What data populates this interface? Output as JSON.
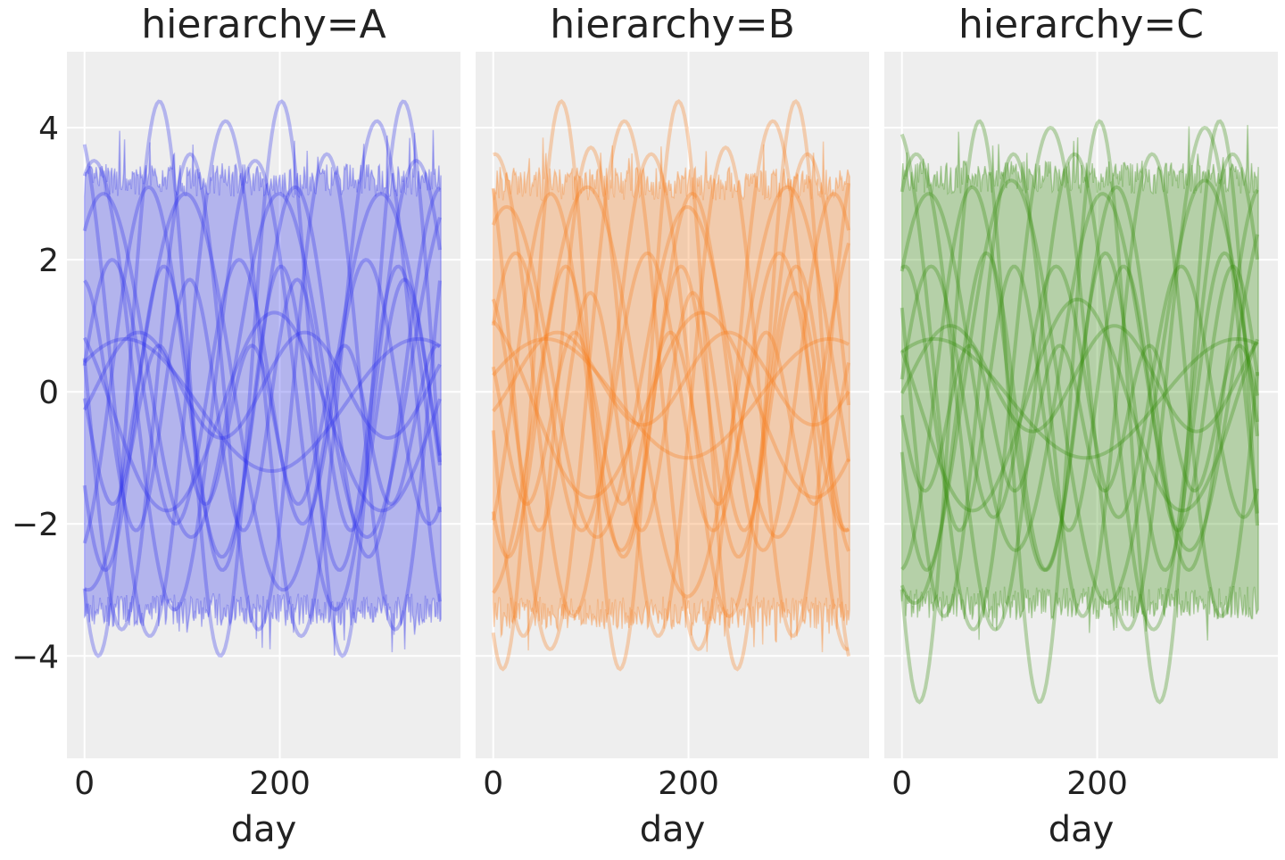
{
  "chart_data": {
    "type": "line",
    "xlabel": "day",
    "ylabel": "",
    "xlim": [
      -18,
      385
    ],
    "ylim": [
      -5.55,
      5.15
    ],
    "xticks": [
      0,
      200
    ],
    "xtick_labels": [
      "0",
      "200"
    ],
    "yticks": [
      -4,
      -2,
      0,
      2,
      4
    ],
    "ytick_labels": [
      "−4",
      "−2",
      "0",
      "2",
      "4"
    ],
    "grid": true,
    "panels": [
      {
        "title": "hierarchy=A",
        "color": "#2a2eec",
        "band": {
          "upper_mean": 3.2,
          "lower_mean": -3.3,
          "noise": 0.25,
          "x_range": [
            0,
            365
          ]
        },
        "curves": [
          {
            "amp": 2.0,
            "period": 130,
            "phase": 0.2,
            "offset": 0.0
          },
          {
            "amp": 3.4,
            "period": 165,
            "phase": 1.2,
            "offset": 0.1
          },
          {
            "amp": 1.5,
            "period": 220,
            "phase": 2.3,
            "offset": -0.3
          },
          {
            "amp": 4.2,
            "period": 125,
            "phase": 4.0,
            "offset": 0.2
          },
          {
            "amp": 2.8,
            "period": 150,
            "phase": 5.1,
            "offset": 0.3
          },
          {
            "amp": 1.0,
            "period": 300,
            "phase": 0.7,
            "offset": -0.2
          },
          {
            "amp": 3.6,
            "period": 140,
            "phase": 3.0,
            "offset": 0.0
          },
          {
            "amp": 1.9,
            "period": 110,
            "phase": 1.7,
            "offset": -0.2
          },
          {
            "amp": 2.6,
            "period": 180,
            "phase": 0.9,
            "offset": 0.4
          },
          {
            "amp": 1.2,
            "period": 95,
            "phase": 2.8,
            "offset": -0.5
          },
          {
            "amp": 3.0,
            "period": 200,
            "phase": 4.6,
            "offset": 0.0
          },
          {
            "amp": 0.8,
            "period": 170,
            "phase": 5.8,
            "offset": 0.1
          },
          {
            "amp": 2.3,
            "period": 120,
            "phase": 3.6,
            "offset": -0.4
          },
          {
            "amp": 3.9,
            "period": 155,
            "phase": 2.0,
            "offset": 0.2
          }
        ]
      },
      {
        "title": "hierarchy=B",
        "color": "#fa7c17",
        "band": {
          "upper_mean": 3.15,
          "lower_mean": -3.35,
          "noise": 0.25,
          "x_range": [
            0,
            365
          ]
        },
        "curves": [
          {
            "amp": 2.1,
            "period": 135,
            "phase": 0.5,
            "offset": 0.0
          },
          {
            "amp": 3.5,
            "period": 160,
            "phase": 1.5,
            "offset": 0.1
          },
          {
            "amp": 1.4,
            "period": 230,
            "phase": 2.0,
            "offset": -0.2
          },
          {
            "amp": 4.3,
            "period": 120,
            "phase": 4.2,
            "offset": 0.1
          },
          {
            "amp": 2.7,
            "period": 145,
            "phase": 5.3,
            "offset": 0.3
          },
          {
            "amp": 0.9,
            "period": 290,
            "phase": 0.4,
            "offset": -0.1
          },
          {
            "amp": 3.7,
            "period": 138,
            "phase": 3.3,
            "offset": 0.0
          },
          {
            "amp": 1.8,
            "period": 105,
            "phase": 1.9,
            "offset": -0.3
          },
          {
            "amp": 2.5,
            "period": 185,
            "phase": 1.1,
            "offset": 0.3
          },
          {
            "amp": 1.3,
            "period": 98,
            "phase": 2.5,
            "offset": -0.4
          },
          {
            "amp": 3.1,
            "period": 205,
            "phase": 4.9,
            "offset": 0.0
          },
          {
            "amp": 0.7,
            "period": 175,
            "phase": 5.5,
            "offset": 0.2
          },
          {
            "amp": 2.2,
            "period": 118,
            "phase": 3.9,
            "offset": -0.3
          },
          {
            "amp": 4.0,
            "period": 152,
            "phase": 2.3,
            "offset": 0.1
          }
        ]
      },
      {
        "title": "hierarchy=C",
        "color": "#328c06",
        "band": {
          "upper_mean": 3.25,
          "lower_mean": -3.2,
          "noise": 0.25,
          "x_range": [
            0,
            365
          ]
        },
        "curves": [
          {
            "amp": 1.9,
            "period": 128,
            "phase": 0.1,
            "offset": 0.0
          },
          {
            "amp": 3.6,
            "period": 162,
            "phase": 1.0,
            "offset": 0.0
          },
          {
            "amp": 1.6,
            "period": 215,
            "phase": 2.6,
            "offset": -0.2
          },
          {
            "amp": 4.4,
            "period": 123,
            "phase": 3.8,
            "offset": -0.3
          },
          {
            "amp": 2.9,
            "period": 148,
            "phase": 4.8,
            "offset": 0.2
          },
          {
            "amp": 0.9,
            "period": 310,
            "phase": 0.9,
            "offset": -0.1
          },
          {
            "amp": 3.5,
            "period": 142,
            "phase": 2.8,
            "offset": 0.1
          },
          {
            "amp": 2.0,
            "period": 112,
            "phase": 1.4,
            "offset": -0.1
          },
          {
            "amp": 2.7,
            "period": 178,
            "phase": 0.6,
            "offset": 0.3
          },
          {
            "amp": 1.1,
            "period": 92,
            "phase": 3.1,
            "offset": -0.4
          },
          {
            "amp": 3.2,
            "period": 198,
            "phase": 4.3,
            "offset": 0.0
          },
          {
            "amp": 0.8,
            "period": 168,
            "phase": 6.0,
            "offset": 0.2
          },
          {
            "amp": 2.4,
            "period": 122,
            "phase": 3.4,
            "offset": -0.3
          },
          {
            "amp": 3.8,
            "period": 158,
            "phase": 1.8,
            "offset": 0.2
          }
        ]
      }
    ]
  }
}
